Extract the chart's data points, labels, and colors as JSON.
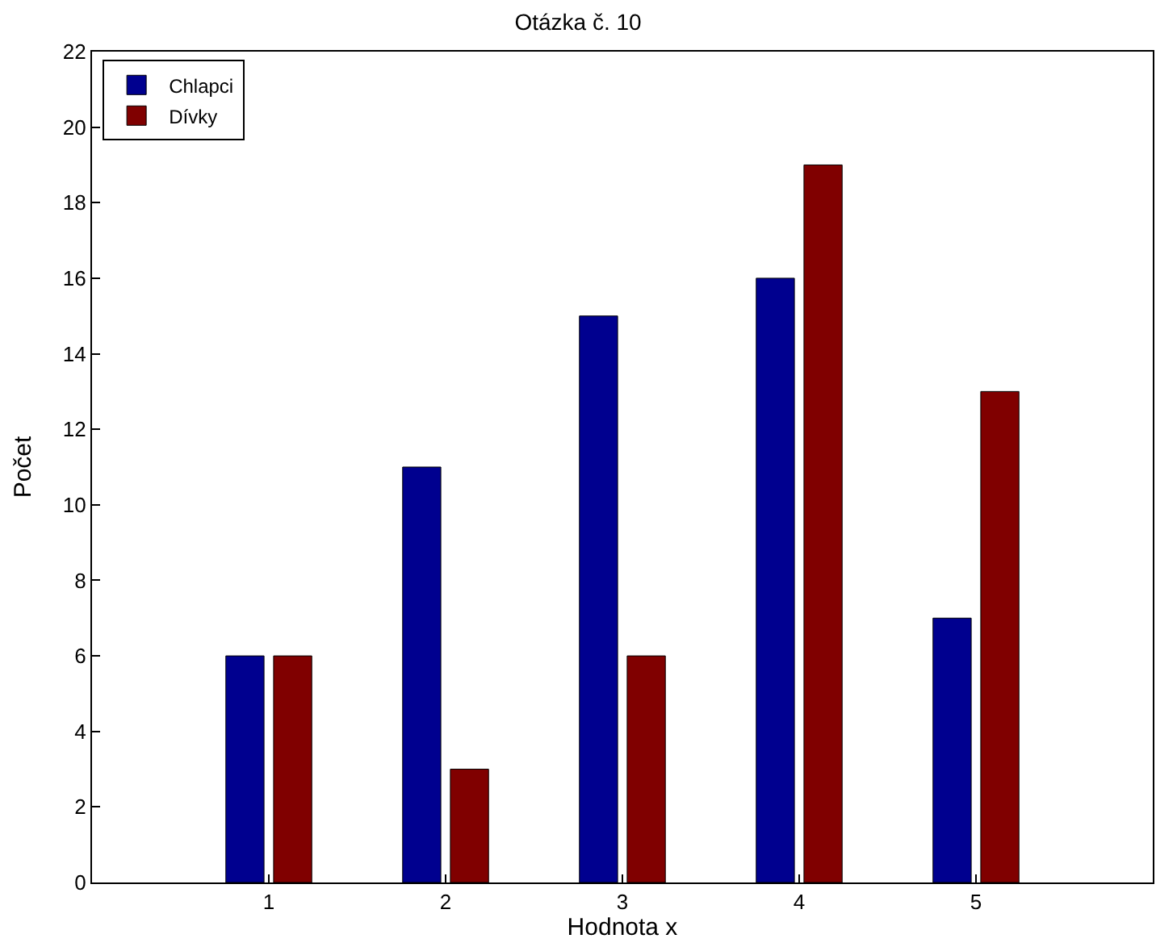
{
  "chart_data": {
    "type": "bar",
    "title": "Otázka č. 10",
    "xlabel": "Hodnota x",
    "ylabel": "Počet",
    "x": [
      1,
      2,
      3,
      4,
      5
    ],
    "series": [
      {
        "name": "Chlapci",
        "color": "#00008f",
        "values": [
          6,
          11,
          15,
          16,
          7
        ]
      },
      {
        "name": "Dívky",
        "color": "#800000",
        "values": [
          6,
          3,
          6,
          19,
          13
        ]
      }
    ],
    "xlim": [
      0,
      6
    ],
    "xticks": [
      1,
      2,
      3,
      4,
      5
    ],
    "ylim": [
      0,
      22
    ],
    "yticks": [
      0,
      2,
      4,
      6,
      8,
      10,
      12,
      14,
      16,
      18,
      20,
      22
    ],
    "legend": "top left"
  }
}
